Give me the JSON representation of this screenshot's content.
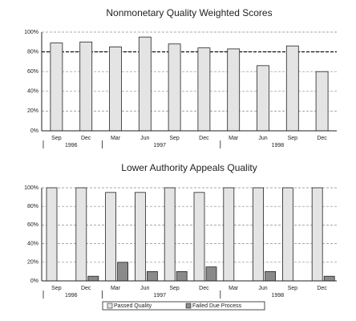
{
  "chart_data": [
    {
      "type": "bar",
      "title": "Nonmonetary Quality Weighted Scores",
      "categories": [
        "Sep",
        "Dec",
        "Mar",
        "Jun",
        "Sep",
        "Dec",
        "Mar",
        "Jun",
        "Sep",
        "Dec"
      ],
      "groups": [
        {
          "label": "1996",
          "count": 2
        },
        {
          "label": "1997",
          "count": 4
        },
        {
          "label": "1998",
          "count": 4
        }
      ],
      "series": [
        {
          "color": "#e4e4e4",
          "values": [
            89,
            90,
            85,
            95,
            88,
            84,
            83,
            66,
            86,
            60
          ]
        }
      ],
      "reference_line": 80,
      "ylim": [
        0,
        100
      ],
      "yticks": [
        {
          "value": 0,
          "label": "0%"
        },
        {
          "value": 20,
          "label": "20%"
        },
        {
          "value": 40,
          "label": "40%"
        },
        {
          "value": 60,
          "label": "60%"
        },
        {
          "value": 80,
          "label": "80%"
        },
        {
          "value": 100,
          "label": "100%"
        }
      ],
      "grid": true
    },
    {
      "type": "bar",
      "title": "Lower Authority Appeals Quality",
      "categories": [
        "Sep",
        "Dec",
        "Mar",
        "Jun",
        "Sep",
        "Dec",
        "Mar",
        "Jun",
        "Sep",
        "Dec"
      ],
      "groups": [
        {
          "label": "1996",
          "count": 2
        },
        {
          "label": "1997",
          "count": 4
        },
        {
          "label": "1998",
          "count": 4
        }
      ],
      "series": [
        {
          "name": "Passed Quality",
          "color": "#e4e4e4",
          "values": [
            100,
            100,
            95,
            95,
            100,
            95,
            100,
            100,
            100,
            100
          ]
        },
        {
          "name": "Failed Due Process",
          "color": "#8a8a8a",
          "values": [
            0,
            5,
            20,
            10,
            10,
            15,
            0,
            10,
            0,
            5
          ]
        }
      ],
      "ylim": [
        0,
        100
      ],
      "yticks": [
        {
          "value": 0,
          "label": "0%"
        },
        {
          "value": 20,
          "label": "20%"
        },
        {
          "value": 40,
          "label": "40%"
        },
        {
          "value": 60,
          "label": "60%"
        },
        {
          "value": 80,
          "label": "80%"
        },
        {
          "value": 100,
          "label": "100%"
        }
      ],
      "grid": true,
      "legend": "bottom"
    }
  ]
}
